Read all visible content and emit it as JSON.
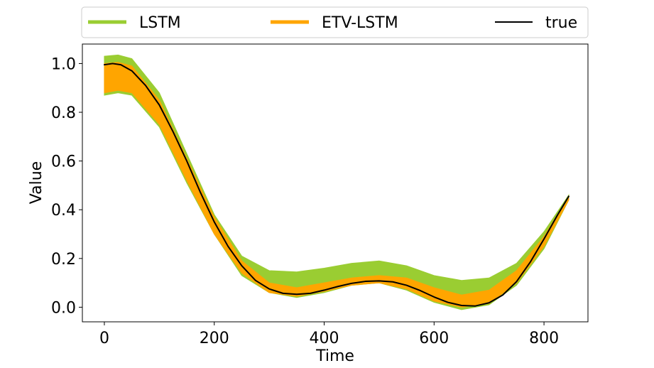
{
  "chart_data": {
    "type": "line",
    "title": "",
    "xlabel": "Time",
    "ylabel": "Value",
    "xlim": [
      -40,
      880
    ],
    "ylim": [
      -0.06,
      1.08
    ],
    "xticks": [
      0,
      200,
      400,
      600,
      800
    ],
    "xtick_labels": [
      "0",
      "200",
      "400",
      "600",
      "800"
    ],
    "yticks": [
      0.0,
      0.2,
      0.4,
      0.6,
      0.8,
      1.0
    ],
    "ytick_labels": [
      "0.0",
      "0.2",
      "0.4",
      "0.6",
      "0.8",
      "1.0"
    ],
    "grid": false,
    "legend_position": "top",
    "series": [
      {
        "name": "LSTM",
        "style": "band",
        "color": "#9acd32",
        "x": [
          0,
          25,
          50,
          100,
          150,
          200,
          250,
          300,
          350,
          400,
          450,
          500,
          550,
          600,
          650,
          700,
          750,
          800,
          845
        ],
        "lower": [
          0.87,
          0.88,
          0.87,
          0.74,
          0.51,
          0.3,
          0.13,
          0.06,
          0.04,
          0.06,
          0.09,
          0.1,
          0.07,
          0.02,
          -0.01,
          0.01,
          0.09,
          0.24,
          0.44
        ],
        "upper": [
          1.03,
          1.035,
          1.02,
          0.88,
          0.63,
          0.38,
          0.21,
          0.15,
          0.145,
          0.16,
          0.18,
          0.19,
          0.17,
          0.13,
          0.11,
          0.12,
          0.18,
          0.31,
          0.46
        ]
      },
      {
        "name": "ETV-LSTM",
        "style": "band",
        "color": "#ffa500",
        "x": [
          0,
          25,
          50,
          100,
          150,
          200,
          250,
          300,
          350,
          400,
          450,
          500,
          550,
          600,
          650,
          700,
          750,
          800,
          845
        ],
        "lower": [
          0.88,
          0.89,
          0.88,
          0.75,
          0.52,
          0.3,
          0.14,
          0.06,
          0.045,
          0.065,
          0.09,
          0.1,
          0.075,
          0.025,
          0.0,
          0.015,
          0.1,
          0.25,
          0.44
        ],
        "upper": [
          1.0,
          1.005,
          0.99,
          0.85,
          0.61,
          0.37,
          0.19,
          0.1,
          0.08,
          0.1,
          0.12,
          0.13,
          0.12,
          0.08,
          0.05,
          0.07,
          0.15,
          0.29,
          0.455
        ]
      },
      {
        "name": "true",
        "style": "line",
        "color": "#000000",
        "x": [
          0,
          15,
          30,
          50,
          75,
          100,
          125,
          150,
          175,
          200,
          225,
          250,
          275,
          300,
          325,
          350,
          375,
          400,
          425,
          450,
          475,
          500,
          525,
          550,
          575,
          600,
          625,
          650,
          675,
          700,
          725,
          750,
          775,
          800,
          825,
          845
        ],
        "y": [
          0.995,
          1.0,
          0.995,
          0.97,
          0.91,
          0.83,
          0.72,
          0.6,
          0.47,
          0.35,
          0.25,
          0.17,
          0.11,
          0.075,
          0.057,
          0.053,
          0.057,
          0.07,
          0.085,
          0.098,
          0.106,
          0.108,
          0.104,
          0.09,
          0.068,
          0.042,
          0.02,
          0.007,
          0.005,
          0.018,
          0.05,
          0.105,
          0.185,
          0.28,
          0.38,
          0.455
        ]
      }
    ]
  },
  "colors": {
    "lstm": "#9acd32",
    "etv_lstm": "#ffa500",
    "true_line": "#000000",
    "axes": "#000000",
    "legend_border": "#cccccc"
  }
}
